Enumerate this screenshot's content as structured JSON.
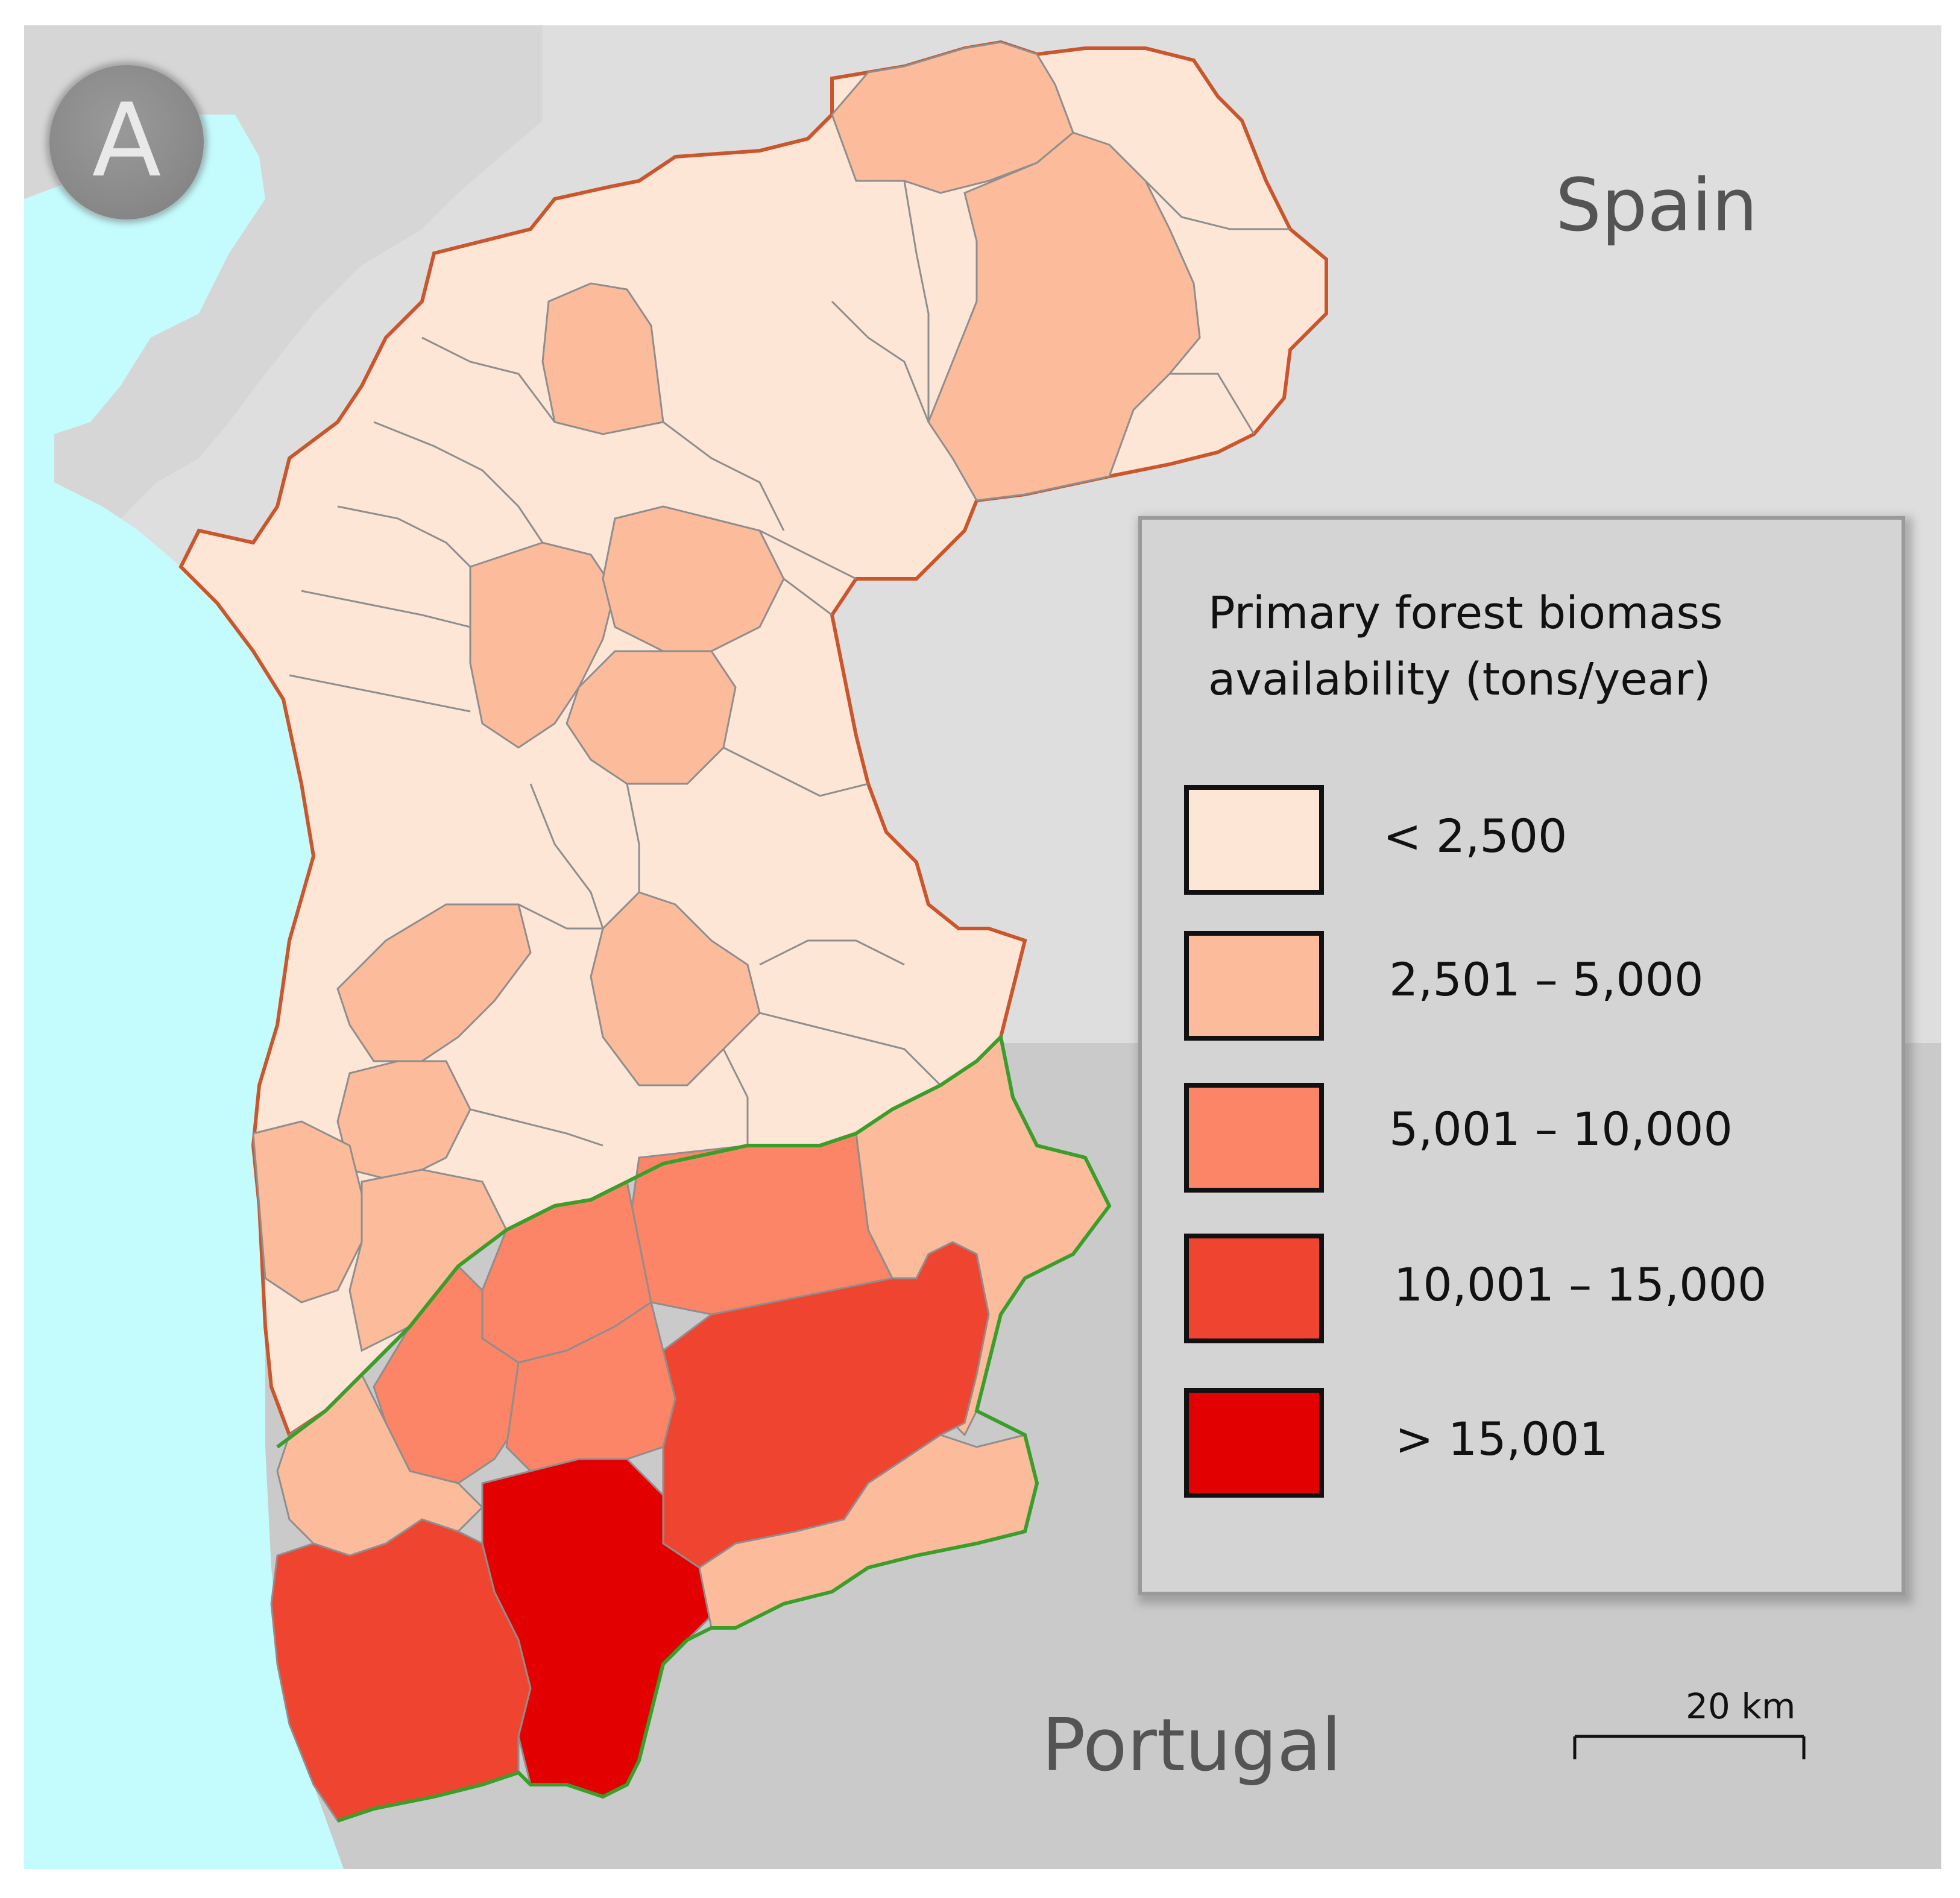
{
  "panel_label": "A",
  "countries": {
    "spain": "Spain",
    "portugal": "Portugal"
  },
  "legend": {
    "title": "Primary forest biomass availability (tons/year)",
    "classes": [
      {
        "label": "< 2,500",
        "color": "#fde6d6"
      },
      {
        "label": "2,501 – 5,000",
        "color": "#fcbb9b"
      },
      {
        "label": "5,001 – 10,000",
        "color": "#fb8566"
      },
      {
        "label": "10,001 – 15,000",
        "color": "#ef4530"
      },
      {
        "label": "> 15,001",
        "color": "#e30000"
      }
    ]
  },
  "scale_bar": {
    "label": "20 km"
  },
  "colors": {
    "sea": "#c4fbfd",
    "spain_land": "#dedede",
    "portugal_land": "#cacaca",
    "outer_land": "#d6d6d6",
    "region_outline": "#c9562c",
    "border_line": "#3a9e2a",
    "municipal_lines": "#8e8e8e"
  }
}
